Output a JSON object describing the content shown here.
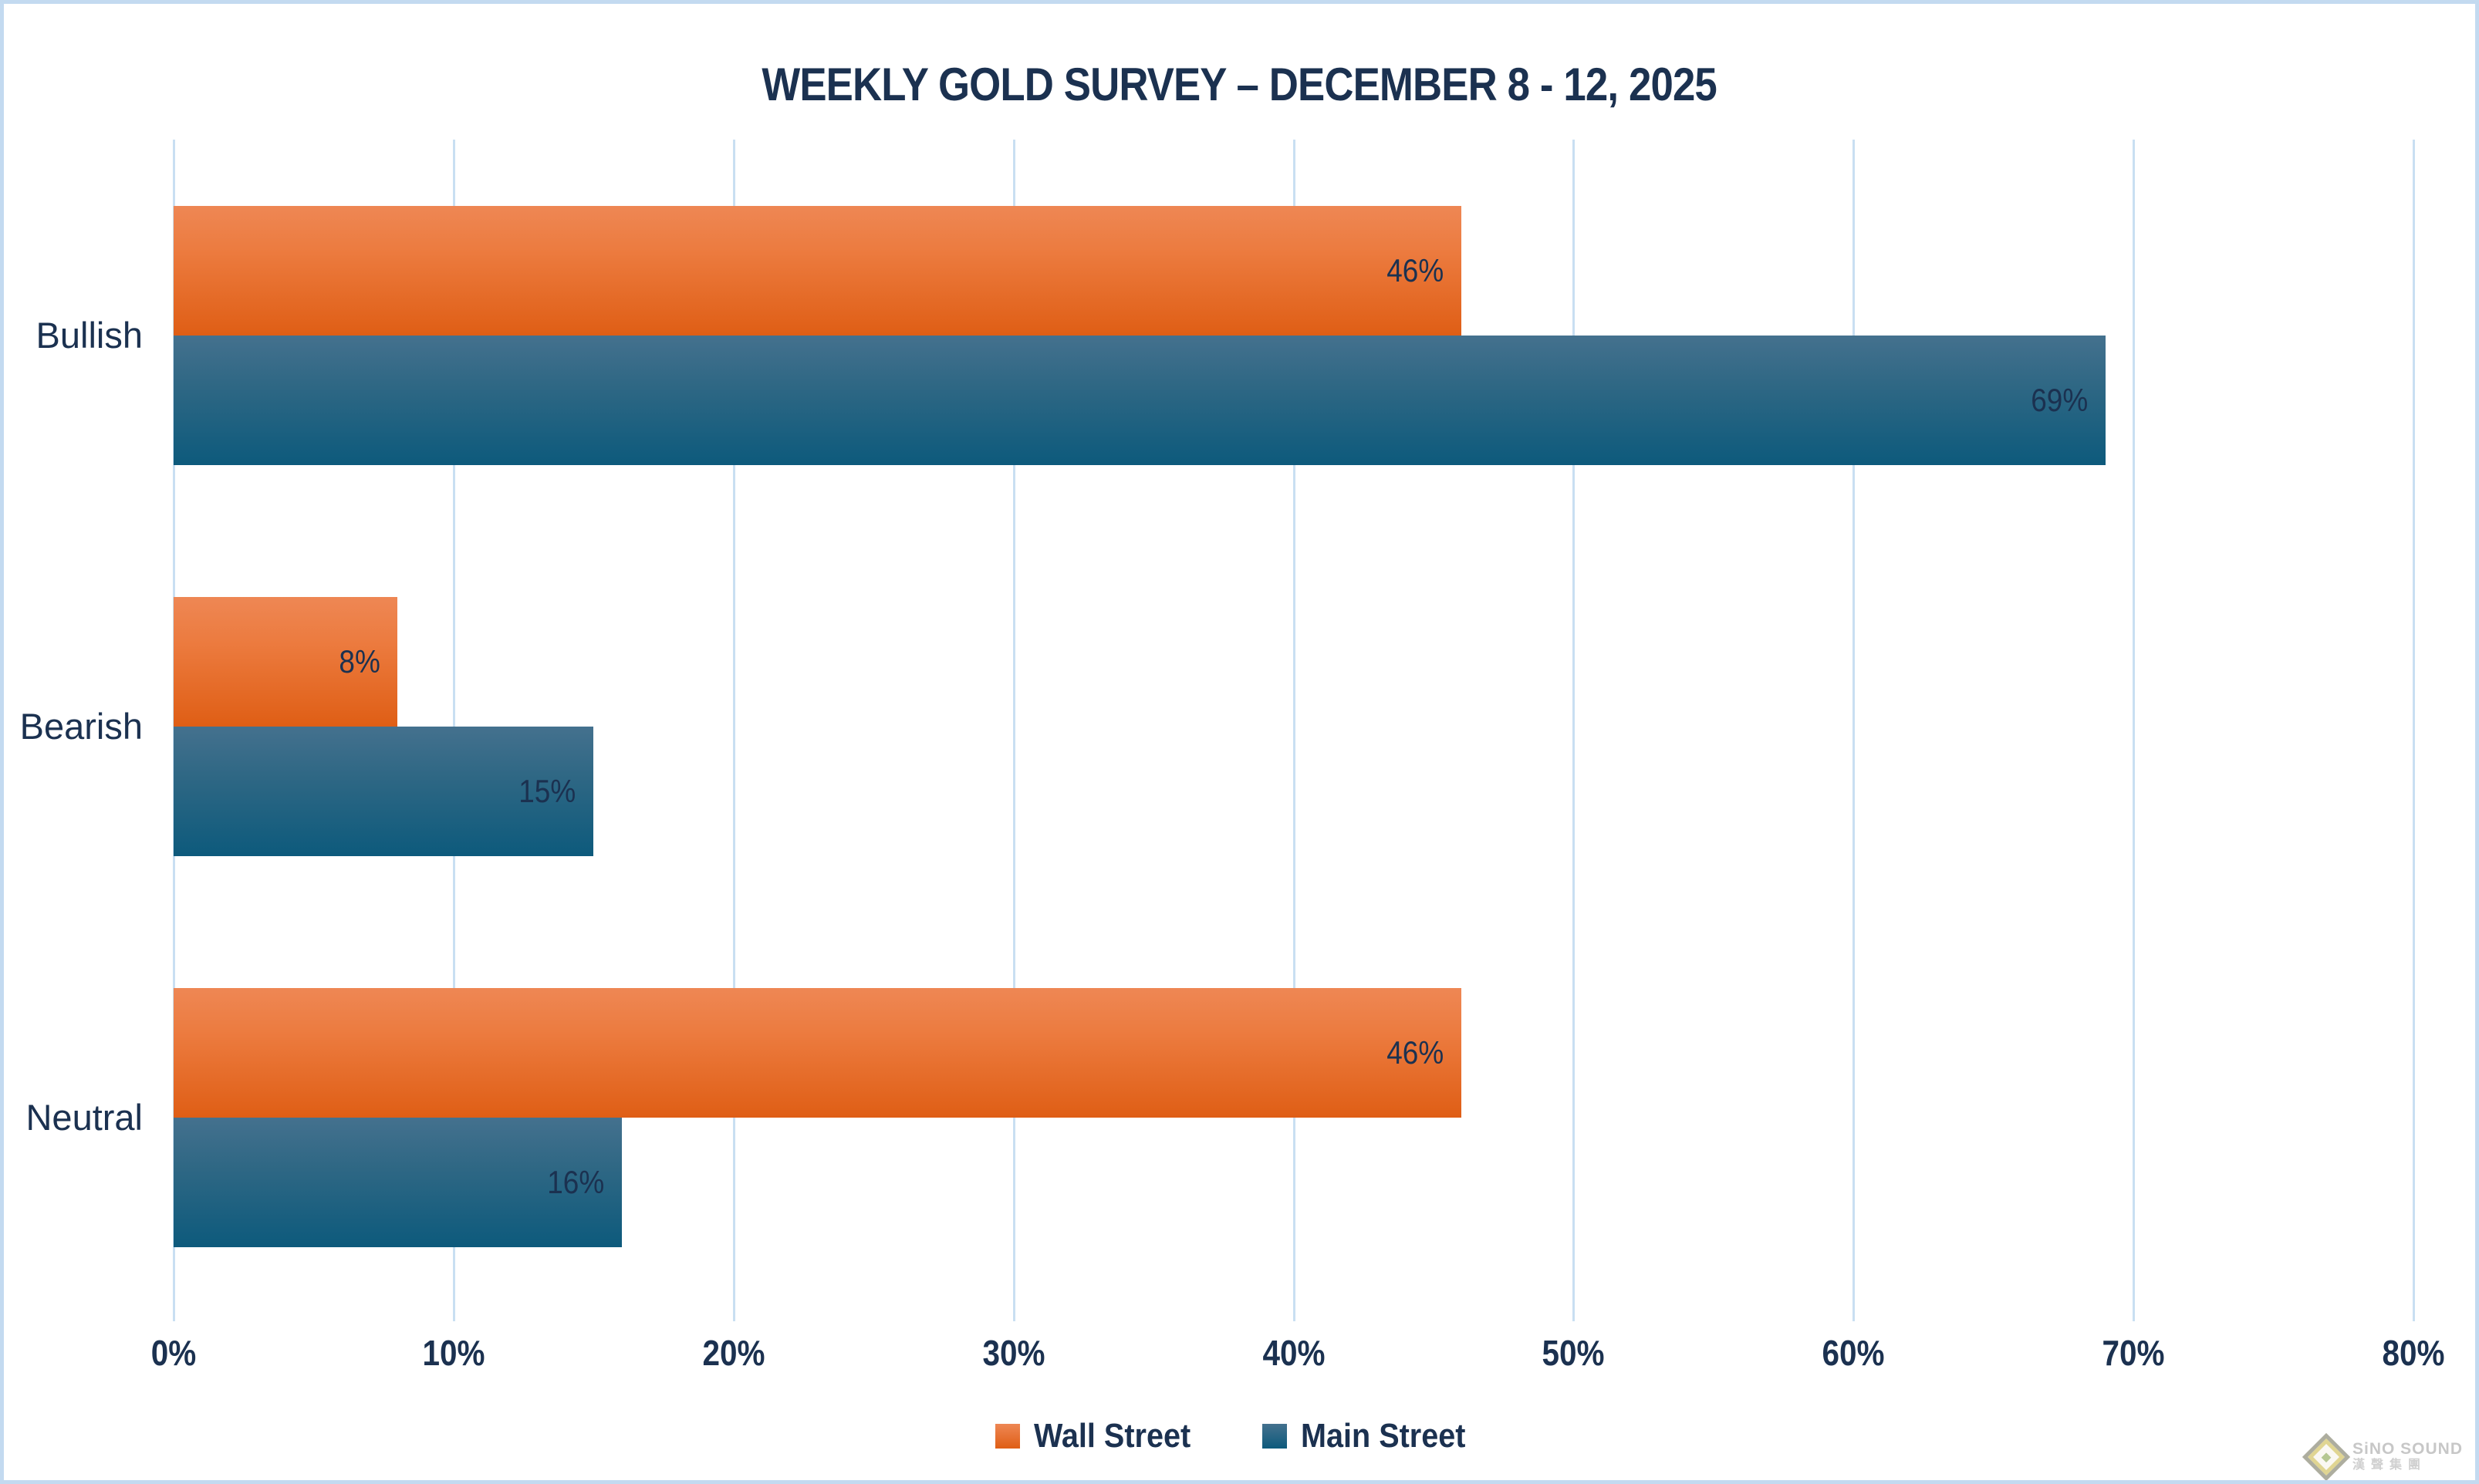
{
  "title": "WEEKLY GOLD SURVEY – DECEMBER 8 - 12, 2025",
  "chart_data": {
    "type": "bar",
    "orientation": "horizontal",
    "title": "WEEKLY GOLD SURVEY – DECEMBER 8 - 12, 2025",
    "categories": [
      "Bullish",
      "Bearish",
      "Neutral"
    ],
    "series": [
      {
        "name": "Wall Street",
        "key": "wall",
        "values": [
          46,
          8,
          46
        ],
        "labels": [
          "46%",
          "8%",
          "46%"
        ],
        "color_top": "#EE8754",
        "color_bottom": "#DF5E15"
      },
      {
        "name": "Main Street",
        "key": "main",
        "values": [
          69,
          15,
          16
        ],
        "labels": [
          "69%",
          "15%",
          "16%"
        ],
        "color_top": "#44718E",
        "color_bottom": "#0D5A7C"
      }
    ],
    "xlim": [
      0,
      80
    ],
    "x_ticks": [
      {
        "value": 0,
        "label": "0%"
      },
      {
        "value": 10,
        "label": "10%"
      },
      {
        "value": 20,
        "label": "20%"
      },
      {
        "value": 30,
        "label": "30%"
      },
      {
        "value": 40,
        "label": "40%"
      },
      {
        "value": 50,
        "label": "50%"
      },
      {
        "value": 60,
        "label": "60%"
      },
      {
        "value": 70,
        "label": "70%"
      },
      {
        "value": 80,
        "label": "80%"
      }
    ],
    "grid": true,
    "legend_position": "bottom",
    "data_labels_position": "inside-end"
  },
  "colors": {
    "text_navy": "#1B3150",
    "gridline": "#C9DFF2",
    "border": "#C3DAF0",
    "background": "#FFFFFF"
  },
  "watermark": {
    "line1": "SiNO SOUND",
    "line2": "漢聲集團",
    "icon": "diamond-logo-icon"
  }
}
